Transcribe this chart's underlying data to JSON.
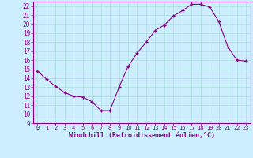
{
  "x": [
    0,
    1,
    2,
    3,
    4,
    5,
    6,
    7,
    8,
    9,
    10,
    11,
    12,
    13,
    14,
    15,
    16,
    17,
    18,
    19,
    20,
    21,
    22,
    23
  ],
  "y": [
    14.8,
    13.9,
    13.1,
    12.4,
    12.0,
    11.9,
    11.4,
    10.4,
    10.4,
    13.0,
    15.3,
    16.8,
    18.0,
    19.3,
    19.9,
    20.9,
    21.5,
    22.2,
    22.2,
    21.9,
    20.3,
    17.5,
    16.0,
    15.9
  ],
  "line_color": "#880088",
  "marker": "+",
  "marker_size": 3.5,
  "marker_lw": 1.0,
  "line_width": 0.8,
  "xlabel": "Windchill (Refroidissement éolien,°C)",
  "xlabel_fontsize": 6.0,
  "bg_color": "#cceeff",
  "grid_color": "#aadddd",
  "tick_color": "#880088",
  "label_color": "#880088",
  "ylim": [
    9,
    22.5
  ],
  "xlim": [
    -0.5,
    23.5
  ],
  "yticks": [
    9,
    10,
    11,
    12,
    13,
    14,
    15,
    16,
    17,
    18,
    19,
    20,
    21,
    22
  ],
  "xticks": [
    0,
    1,
    2,
    3,
    4,
    5,
    6,
    7,
    8,
    9,
    10,
    11,
    12,
    13,
    14,
    15,
    16,
    17,
    18,
    19,
    20,
    21,
    22,
    23
  ],
  "tick_fontsize": 5.5,
  "xtick_fontsize": 5.0
}
